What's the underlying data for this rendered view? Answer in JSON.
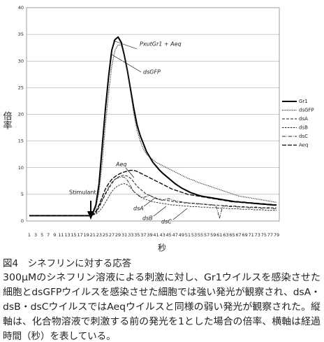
{
  "chart_data": {
    "type": "line",
    "ylabel": "倍率",
    "xlabel": "秒",
    "categories": [
      1,
      null,
      3,
      null,
      5,
      null,
      7,
      null,
      9,
      null,
      11,
      null,
      13,
      null,
      15,
      null,
      17,
      null,
      19,
      null,
      21,
      null,
      23,
      null,
      25,
      null,
      27,
      null,
      29,
      null,
      31,
      null,
      33,
      null,
      35,
      null,
      37,
      null,
      39,
      null,
      41,
      null,
      43,
      null,
      45,
      null,
      47,
      null,
      49,
      null,
      51,
      null,
      53,
      null,
      55,
      null,
      57,
      null,
      59,
      null,
      61,
      null,
      63,
      null,
      65,
      null,
      67,
      null,
      69,
      null,
      71,
      null,
      73,
      null,
      75,
      null,
      77,
      null,
      79
    ],
    "ylim": [
      0,
      40
    ],
    "yticks": [
      0,
      5,
      10,
      15,
      20,
      25,
      30,
      35,
      40
    ],
    "grid": true,
    "series": [
      {
        "name": "Gr1",
        "color": "#000000",
        "values": [
          1,
          1,
          1,
          1,
          1,
          1,
          1,
          1,
          1,
          1,
          1,
          1,
          1,
          1,
          1,
          1,
          1,
          1,
          1,
          1,
          1.5,
          3,
          7,
          14,
          21,
          27,
          32,
          34,
          34.5,
          33.5,
          31,
          28,
          24.5,
          21,
          18,
          16,
          14.5,
          13,
          12,
          11,
          10.3,
          9.6,
          9,
          8.5,
          8,
          7.5,
          7,
          6.6,
          6.2,
          5.9,
          5.6,
          5.3,
          5.1,
          4.9,
          4.7,
          4.6,
          4.5,
          4.4,
          4.3,
          4.2,
          4.1,
          4,
          3.9,
          3.8,
          3.7,
          3.6,
          3.6,
          3.5,
          3.5,
          3.4,
          3.4,
          3.3,
          3.3,
          3.2,
          3.2,
          3.1,
          3.1,
          3,
          3
        ]
      },
      {
        "name": "dsGFP",
        "color": "#333333",
        "values": [
          1,
          1,
          1,
          1,
          1,
          1,
          1,
          1,
          1,
          1,
          1,
          1,
          1,
          1,
          1,
          1,
          1,
          1,
          1,
          1,
          1.3,
          2.5,
          5.5,
          11,
          18,
          24,
          29,
          32,
          33,
          33,
          31,
          28,
          24,
          20,
          17,
          15,
          13.5,
          12.5,
          12,
          11.5,
          11,
          10.7,
          10.4,
          10.1,
          9.8,
          9.5,
          9.2,
          8.9,
          8.6,
          8.3,
          8,
          7.8,
          7.6,
          7.3,
          7.1,
          6.9,
          6.7,
          6.5,
          6.3,
          6.1,
          5.9,
          5.7,
          5.5,
          5.3,
          5.1,
          4.9,
          4.7,
          4.6,
          4.5,
          4.4,
          4.3,
          4.2,
          4.1,
          4,
          3.9,
          3.8,
          3.7,
          3.6,
          3.5
        ]
      },
      {
        "name": "dsA",
        "color": "#222222",
        "values": [
          1,
          1,
          1,
          1,
          1,
          1,
          1,
          1,
          1,
          1,
          1,
          1,
          1,
          1,
          1,
          1,
          1,
          1,
          1,
          1,
          1.1,
          1.5,
          2.5,
          3.8,
          5,
          6,
          7,
          7.8,
          8.2,
          8.5,
          8.6,
          8.4,
          8,
          7.3,
          6.5,
          6,
          5.5,
          5,
          4.8,
          4.5,
          4.3,
          4.1,
          4,
          3.9,
          3.8,
          3.7,
          3.6,
          3.5,
          3.5,
          3.4,
          3.4,
          3.3,
          3.3,
          3.2,
          3.2,
          3.1,
          3.1,
          3,
          3,
          3,
          2.9,
          2.9,
          2.9,
          2.8,
          2.8,
          2.8,
          2.7,
          2.7,
          2.7,
          2.6,
          2.6,
          2.6,
          2.6,
          2.5,
          2.5,
          2.5,
          2.5,
          2.5,
          2.5
        ]
      },
      {
        "name": "dsB",
        "color": "#222222",
        "values": [
          1,
          1,
          1,
          1,
          1,
          1,
          1,
          1,
          1,
          1,
          1,
          1,
          1,
          1,
          1,
          1,
          1,
          1,
          1,
          1,
          1.1,
          1.3,
          1.8,
          2.5,
          3.5,
          4.5,
          5.5,
          6.2,
          6.6,
          6.9,
          7,
          6.8,
          6.2,
          5.5,
          5,
          4.5,
          4.2,
          4,
          3.8,
          3.6,
          3.5,
          3.4,
          3.3,
          3.2,
          3.1,
          3,
          3,
          2.9,
          2.9,
          2.8,
          2.8,
          2.7,
          2.7,
          2.7,
          2.6,
          2.6,
          2.6,
          2.5,
          2.5,
          2.5,
          2.4,
          2.4,
          2.4,
          2.3,
          2.3,
          2.3,
          2.3,
          2.2,
          2.2,
          2.2,
          2.2,
          2.1,
          2.1,
          2.1,
          2.1,
          2,
          2,
          2,
          2
        ]
      },
      {
        "name": "dsC",
        "color": "#222222",
        "values": [
          1,
          1,
          1,
          1,
          1,
          1,
          1,
          1,
          1,
          1,
          1,
          1,
          1,
          1,
          1,
          1,
          1,
          1,
          1,
          1,
          1.1,
          1.6,
          2.8,
          4,
          5.2,
          6.3,
          7.2,
          7.8,
          8.1,
          8.3,
          8.2,
          7.6,
          6.5,
          5.5,
          5,
          4.6,
          4.4,
          4.6,
          4.8,
          4.5,
          4.2,
          4,
          3.9,
          4.1,
          4.2,
          4,
          3.8,
          3.7,
          3.6,
          3.5,
          3.4,
          3.4,
          3.3,
          3.3,
          3.2,
          3.2,
          3.1,
          3.1,
          3,
          2.8,
          0.5,
          2.8,
          2.8,
          2.7,
          2.7,
          2.7,
          2.6,
          2.6,
          2.6,
          2.5,
          2.5,
          2.5,
          2.5,
          2.4,
          2.4,
          2.4,
          2.4,
          2.3,
          2.3
        ]
      },
      {
        "name": "Aeq",
        "color": "#000000",
        "values": [
          1,
          1,
          1,
          1,
          1,
          1,
          1,
          1,
          1,
          1,
          1,
          1,
          1,
          1,
          1,
          1,
          1,
          1,
          1,
          1,
          1.2,
          1.8,
          3,
          4.5,
          6,
          7,
          7.8,
          8.3,
          8.7,
          9,
          9.2,
          9.4,
          9.5,
          9.5,
          9.3,
          9,
          8.7,
          8.4,
          8.1,
          7.8,
          7.5,
          7.2,
          6.9,
          6.6,
          6.3,
          6,
          5.8,
          5.6,
          5.4,
          5.2,
          5,
          4.9,
          4.8,
          4.7,
          4.6,
          4.5,
          4.4,
          4.3,
          4.2,
          4.1,
          4,
          3.9,
          3.8,
          3.7,
          3.6,
          3.6,
          3.5,
          3.5,
          3.4,
          3.4,
          3.3,
          3.3,
          3.2,
          3.2,
          3.1,
          3.1,
          3,
          3,
          3
        ]
      }
    ],
    "annotations": [
      "PxutGr1 + Aeq",
      "dsGFP",
      "Aeq",
      "dsA",
      "dsB",
      "dsC",
      "Stimulant"
    ]
  },
  "caption": {
    "title": "図4　シネフリンに対する応答",
    "lines": [
      "300μMのシネフリン溶液による刺激に対し、Gr1ウイルスを感染させた",
      "細胞とdsGFPウイルスを感染させた細胞では強い発光が観察され、dsA・",
      "dsB・dsCウイルスではAeqウイルスと同様の弱い発光が観察された。縦",
      "軸は、化合物溶液で刺激する前の発光を1とした場合の倍率、横軸は経過",
      "時間（秒）を表している。"
    ]
  }
}
